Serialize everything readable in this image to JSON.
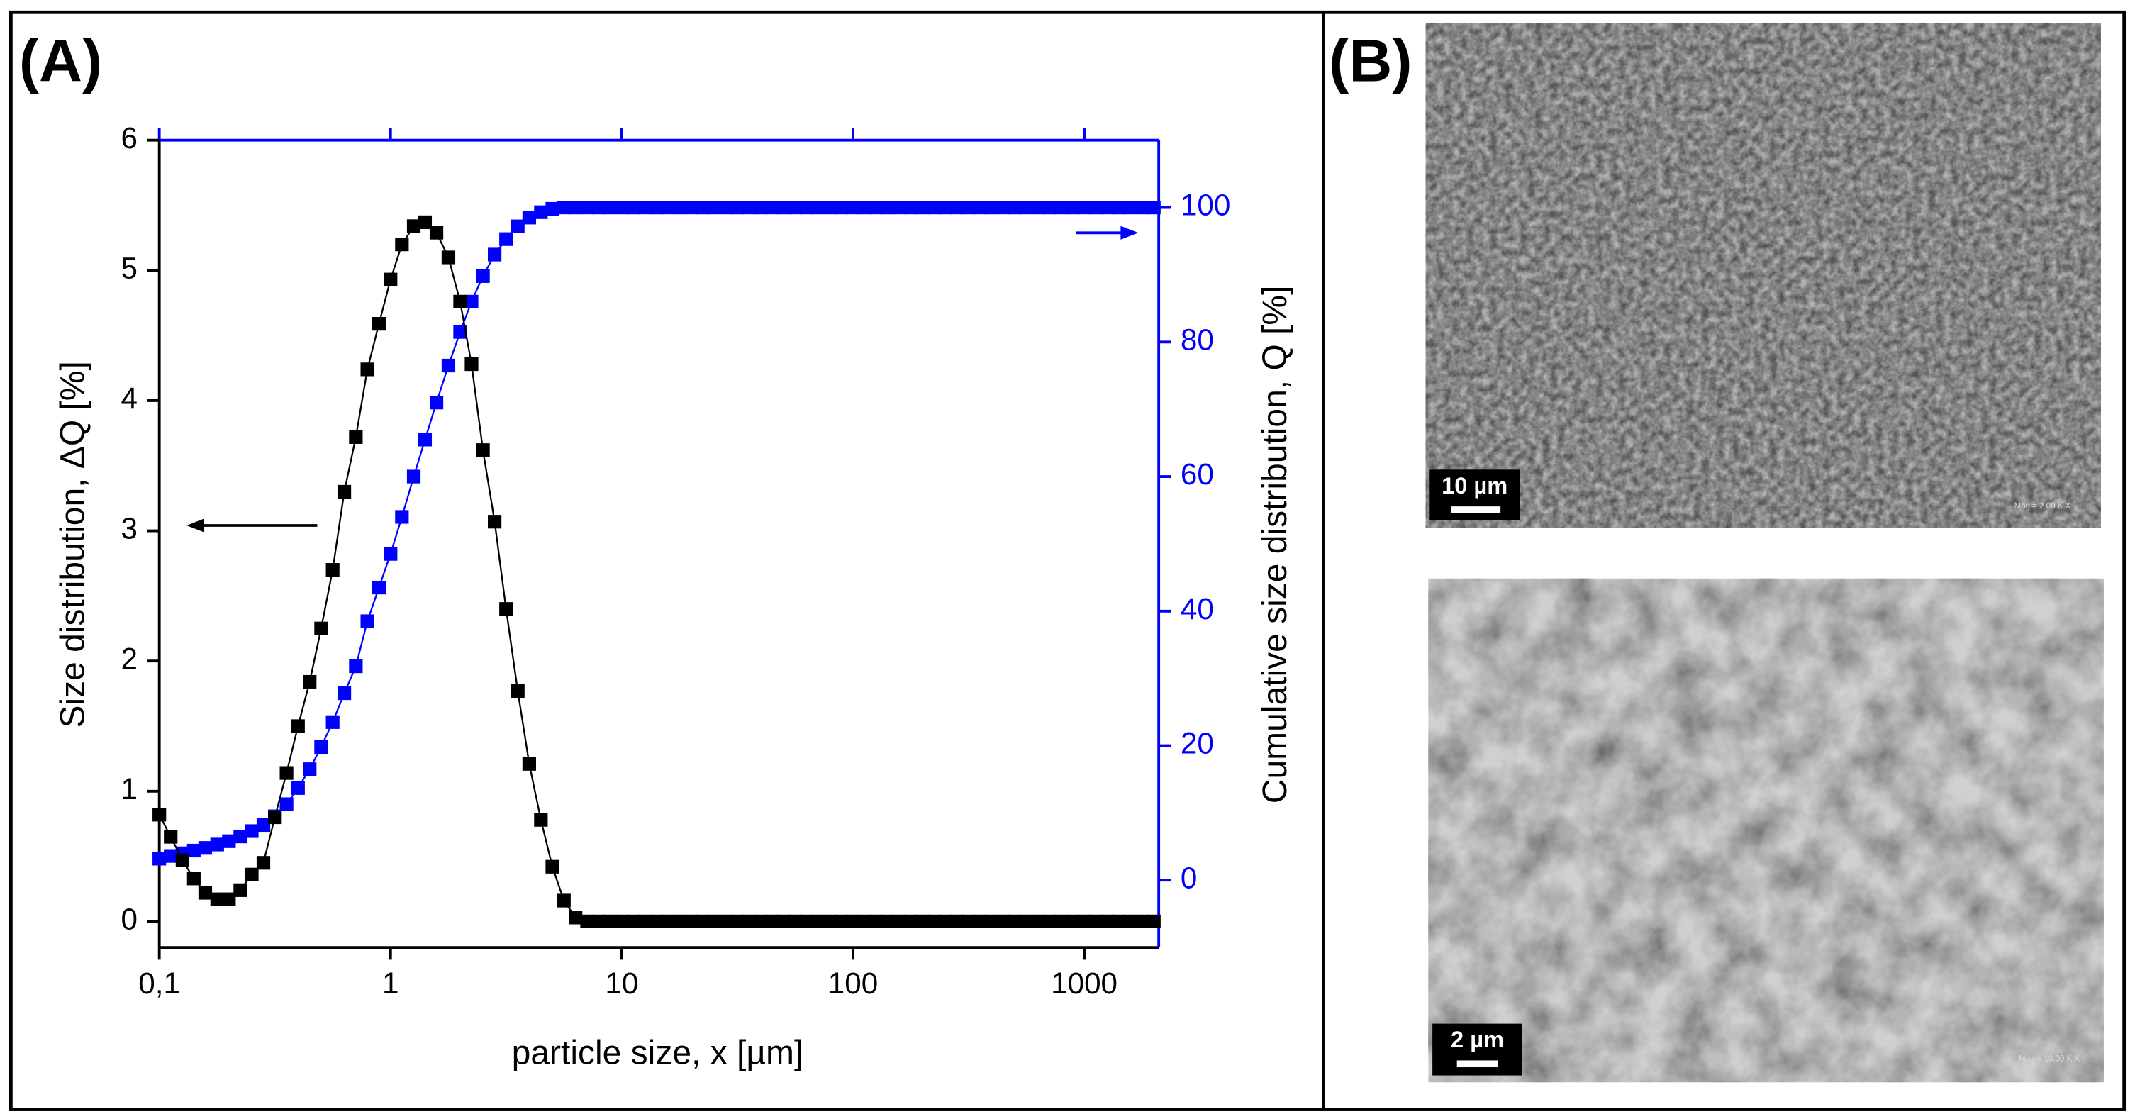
{
  "panels": {
    "a_label": "(A)",
    "b_label": "(B)"
  },
  "images": [
    {
      "scale_bar": "10 µm",
      "magnification": "Mag = 2.00 K X"
    },
    {
      "scale_bar": "2 µm",
      "magnification": "Mag = 10.00 K X"
    }
  ],
  "chart_data": {
    "type": "line",
    "markers": "square",
    "x_label": "particle size, x [µm]",
    "y_label": "Size distribution, ΔQ [%]",
    "y2_label": "Cumulative size distribution, Q [%]",
    "log_x": true,
    "xlim": [
      0.1,
      2100
    ],
    "xticks": [
      {
        "value": 0.1,
        "label": "0,1"
      },
      1,
      10,
      100,
      1000
    ],
    "ylim": [
      -0.2,
      6
    ],
    "yticks": [
      0,
      1,
      2,
      3,
      4,
      5,
      6
    ],
    "y2lim": [
      -10,
      110
    ],
    "y2ticks": [
      0,
      20,
      40,
      60,
      80,
      100
    ],
    "y2_color": "#0000ff",
    "x": [
      0.1,
      0.112,
      0.126,
      0.141,
      0.158,
      0.178,
      0.2,
      0.224,
      0.251,
      0.282,
      0.316,
      0.355,
      0.398,
      0.447,
      0.501,
      0.562,
      0.631,
      0.708,
      0.794,
      0.891,
      1,
      1.12,
      1.26,
      1.41,
      1.58,
      1.78,
      2,
      2.24,
      2.51,
      2.82,
      3.16,
      3.55,
      3.98,
      4.47,
      5.01,
      5.62,
      6.31,
      7.08,
      7.94,
      8.91,
      10,
      11.2,
      12.6,
      14.1,
      15.8,
      17.8,
      20,
      22.4,
      25.1,
      28.2,
      31.6,
      35.5,
      39.8,
      44.7,
      50.1,
      56.2,
      63.1,
      70.8,
      79.4,
      89.1,
      100,
      112,
      126,
      141,
      158,
      178,
      200,
      224,
      251,
      282,
      316,
      355,
      398,
      447,
      501,
      562,
      631,
      708,
      794,
      891,
      1000,
      1120,
      1260,
      1410,
      1580,
      1780,
      2000
    ],
    "series": [
      {
        "color": "#0000ff",
        "axis": "y2",
        "values": [
          3.2,
          3.6,
          4.0,
          4.4,
          4.8,
          5.3,
          5.8,
          6.5,
          7.3,
          8.2,
          9.5,
          11.3,
          13.7,
          16.5,
          19.8,
          23.5,
          27.8,
          31.8,
          38.5,
          43.5,
          48.5,
          54,
          60,
          65.5,
          71,
          76.5,
          81.5,
          86,
          89.8,
          93,
          95.3,
          97.2,
          98.5,
          99.3,
          99.8,
          100,
          100,
          100,
          100,
          100,
          100,
          100,
          100,
          100,
          100,
          100,
          100,
          100,
          100,
          100,
          100,
          100,
          100,
          100,
          100,
          100,
          100,
          100,
          100,
          100,
          100,
          100,
          100,
          100,
          100,
          100,
          100,
          100,
          100,
          100,
          100,
          100,
          100,
          100,
          100,
          100,
          100,
          100,
          100,
          100,
          100,
          100,
          100,
          100,
          100,
          100,
          100
        ]
      },
      {
        "color": "#000000",
        "values": [
          0.82,
          0.65,
          0.47,
          0.33,
          0.22,
          0.17,
          0.17,
          0.24,
          0.36,
          0.45,
          0.8,
          1.14,
          1.5,
          1.84,
          2.25,
          2.7,
          3.3,
          3.72,
          4.24,
          4.59,
          4.93,
          5.2,
          5.34,
          5.37,
          5.29,
          5.1,
          4.76,
          4.28,
          3.62,
          3.07,
          2.4,
          1.77,
          1.21,
          0.78,
          0.42,
          0.16,
          0.03,
          0,
          0,
          0,
          0,
          0,
          0,
          0,
          0,
          0,
          0,
          0,
          0,
          0,
          0,
          0,
          0,
          0,
          0,
          0,
          0,
          0,
          0,
          0,
          0,
          0,
          0,
          0,
          0,
          0,
          0,
          0,
          0,
          0,
          0,
          0,
          0,
          0,
          0,
          0,
          0,
          0,
          0,
          0,
          0,
          0,
          0,
          0,
          0,
          0,
          0
        ]
      }
    ]
  }
}
